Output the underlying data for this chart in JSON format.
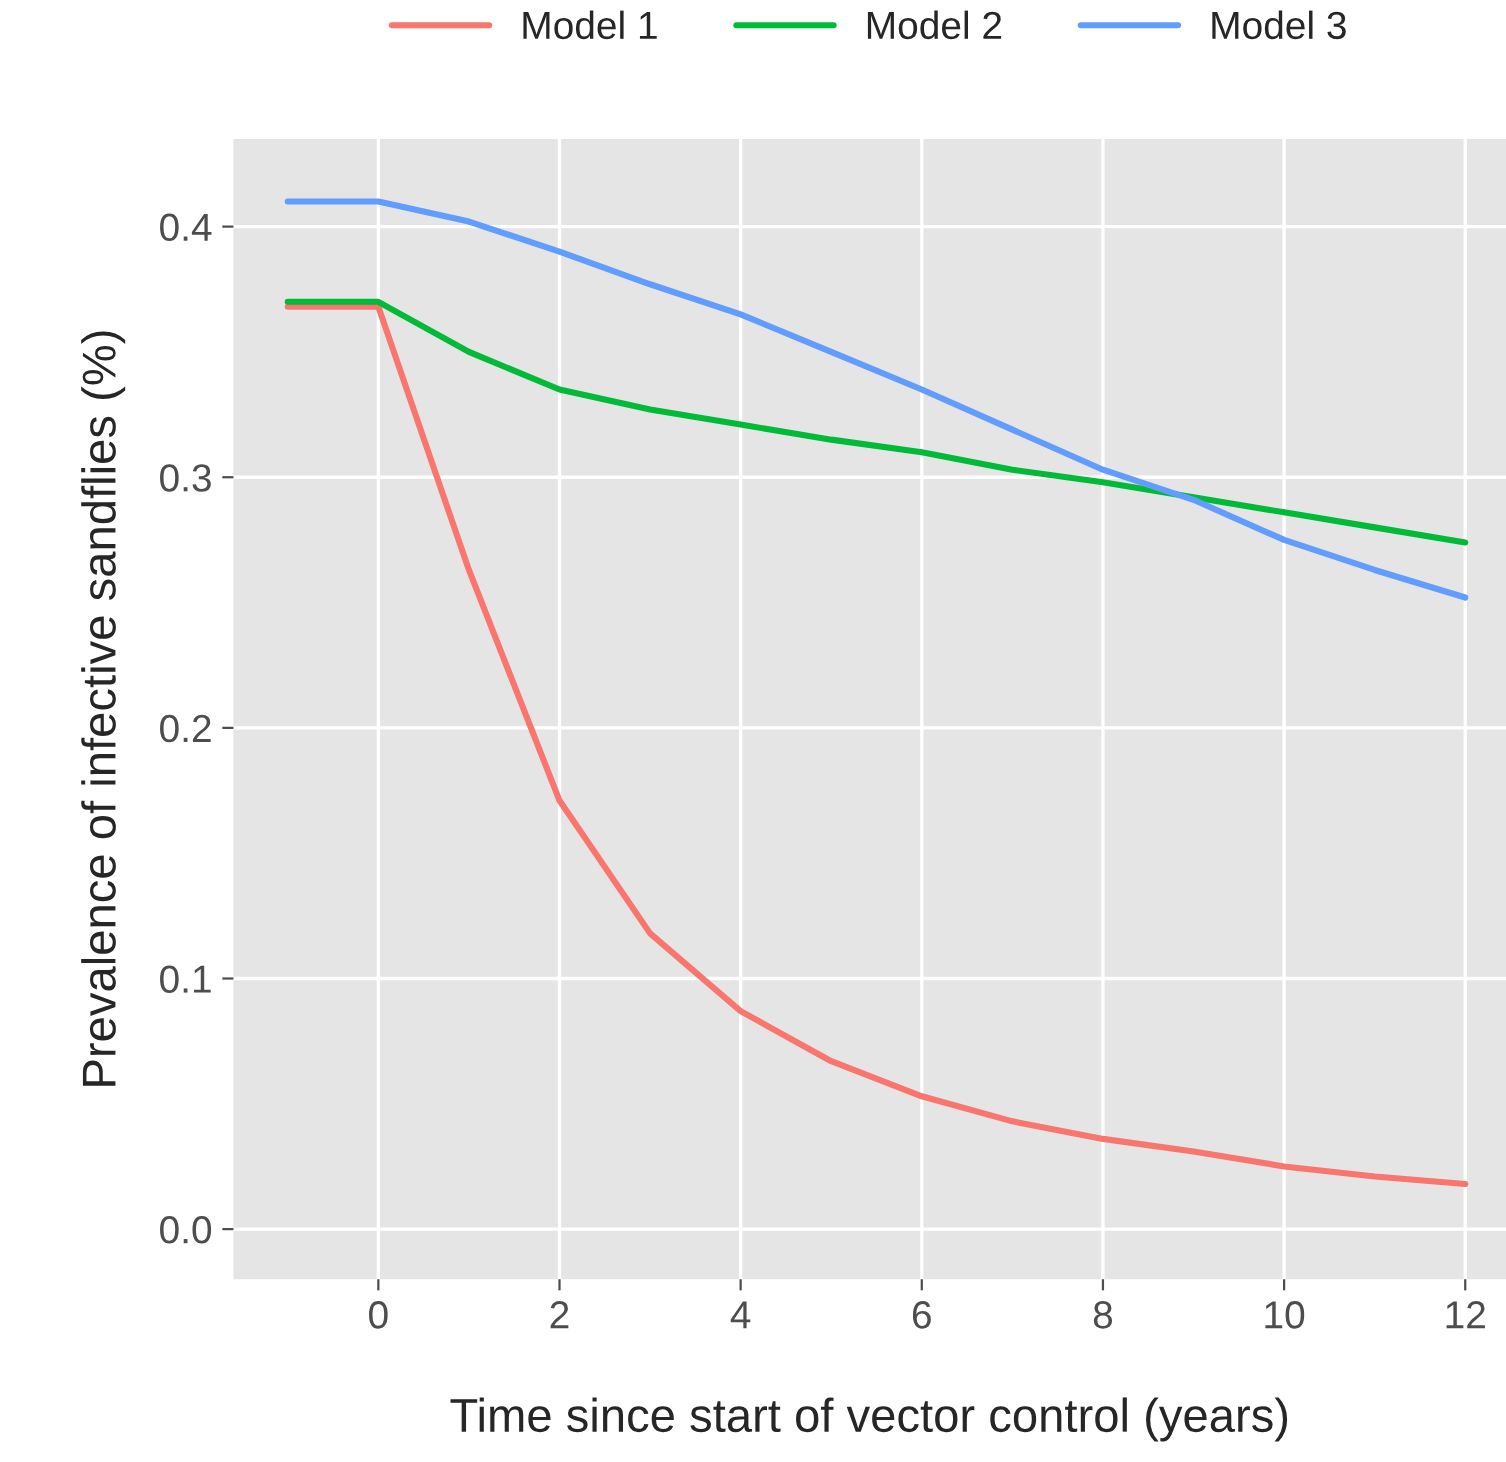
{
  "chart_data": {
    "type": "line",
    "xlabel": "Time since start of vector control (years)",
    "ylabel": "Prevalence of infective sandflies (%)",
    "x": [
      -1,
      0,
      1,
      2,
      3,
      4,
      5,
      6,
      7,
      8,
      9,
      10,
      11,
      12
    ],
    "series": [
      {
        "name": "Model 1",
        "color": "#f8766d",
        "values": [
          0.368,
          0.368,
          0.263,
          0.171,
          0.118,
          0.087,
          0.067,
          0.053,
          0.043,
          0.036,
          0.031,
          0.025,
          0.021,
          0.018
        ]
      },
      {
        "name": "Model 2",
        "color": "#00ba38",
        "values": [
          0.37,
          0.37,
          0.35,
          0.335,
          0.327,
          0.321,
          0.315,
          0.31,
          0.303,
          0.298,
          0.292,
          0.286,
          0.28,
          0.274
        ]
      },
      {
        "name": "Model 3",
        "color": "#619cff",
        "values": [
          0.41,
          0.41,
          0.402,
          0.39,
          0.377,
          0.365,
          0.35,
          0.335,
          0.319,
          0.303,
          0.291,
          0.275,
          0.263,
          0.252
        ]
      }
    ],
    "xlim": [
      -1.6,
      12.45
    ],
    "ylim": [
      -0.02,
      0.435
    ],
    "xticks": [
      0,
      2,
      4,
      6,
      8,
      10,
      12
    ],
    "yticks": [
      {
        "value": 0.0,
        "label": "0.0"
      },
      {
        "value": 0.1,
        "label": "0.1"
      },
      {
        "value": 0.2,
        "label": "0.2"
      },
      {
        "value": 0.3,
        "label": "0.3"
      },
      {
        "value": 0.4,
        "label": "0.4"
      }
    ],
    "grid": true,
    "legend": "top",
    "line_style": "solid",
    "marker": "none"
  }
}
